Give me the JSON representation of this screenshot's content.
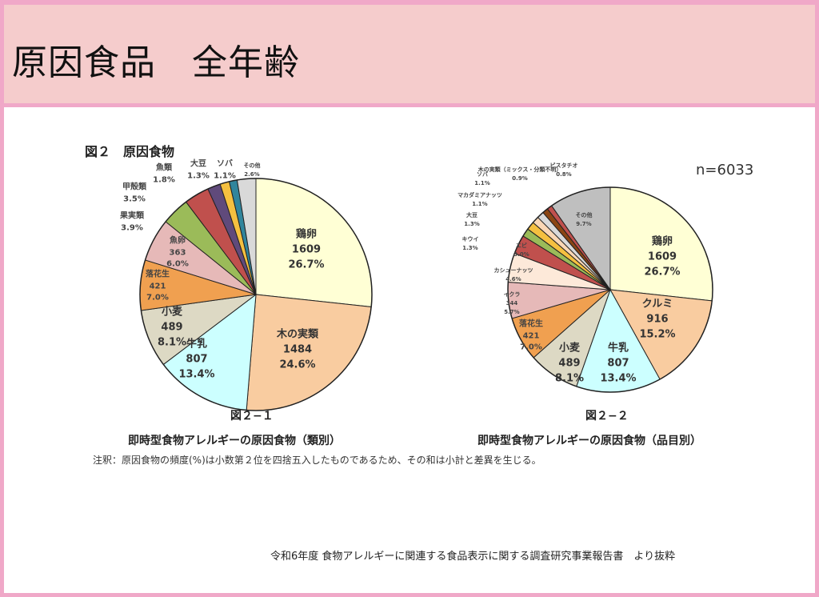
{
  "header": {
    "title": "原因食品　全年齢"
  },
  "figure_heading": "図２　原因食物",
  "n_label": "n=6033",
  "note": "注釈：原因食物の頻度(%)は小数第２位を四捨五入したものであるため、その和は小計と差異を生じる。",
  "source": "令和6年度 食物アレルギーに関連する食品表示に関する調査研究事業報告書　より抜粋",
  "chart_data": [
    {
      "type": "pie",
      "fig_label": "図２−１",
      "title": "即時型食物アレルギーの原因食物（類別）",
      "unit": "%",
      "slices": [
        {
          "name": "鶏卵",
          "count": "1609",
          "pct": "26.7%",
          "value": 26.7,
          "color": "#ffffd5"
        },
        {
          "name": "木の実類",
          "count": "1484",
          "pct": "24.6%",
          "value": 24.6,
          "color": "#f9cca0"
        },
        {
          "name": "牛乳",
          "count": "807",
          "pct": "13.4%",
          "value": 13.4,
          "color": "#ccffff"
        },
        {
          "name": "小麦",
          "count": "489",
          "pct": "8.1%",
          "value": 8.1,
          "color": "#ddd9c4"
        },
        {
          "name": "落花生",
          "count": "421",
          "pct": "7.0%",
          "value": 7.0,
          "color": "#f0a050"
        },
        {
          "name": "魚卵",
          "count": "363",
          "pct": "6.0%",
          "value": 6.0,
          "color": "#e6b9b8"
        },
        {
          "name": "果実類",
          "pct": "3.9%",
          "value": 3.9,
          "color": "#9bbb59"
        },
        {
          "name": "甲殻類",
          "pct": "3.5%",
          "value": 3.5,
          "color": "#c0504d"
        },
        {
          "name": "魚類",
          "pct": "1.8%",
          "value": 1.8,
          "color": "#604a7b"
        },
        {
          "name": "大豆",
          "pct": "1.3%",
          "value": 1.3,
          "color": "#f5c040"
        },
        {
          "name": "ソバ",
          "pct": "1.1%",
          "value": 1.1,
          "color": "#31859c"
        },
        {
          "name": "その他",
          "pct": "2.6%",
          "value": 2.6,
          "color": "#d9d9d9"
        }
      ]
    },
    {
      "type": "pie",
      "fig_label": "図２−２",
      "title": "即時型食物アレルギーの原因食物（品目別）",
      "unit": "%",
      "slices": [
        {
          "name": "鶏卵",
          "count": "1609",
          "pct": "26.7%",
          "value": 26.7,
          "color": "#ffffd5"
        },
        {
          "name": "クルミ",
          "count": "916",
          "pct": "15.2%",
          "value": 15.2,
          "color": "#f9cca0"
        },
        {
          "name": "牛乳",
          "count": "807",
          "pct": "13.4%",
          "value": 13.4,
          "color": "#ccffff"
        },
        {
          "name": "小麦",
          "count": "489",
          "pct": "8.1%",
          "value": 8.1,
          "color": "#ddd9c4"
        },
        {
          "name": "落花生",
          "count": "421",
          "pct": "7.0%",
          "value": 7.0,
          "color": "#f0a050"
        },
        {
          "name": "イクラ",
          "count": "344",
          "pct": "5.7%",
          "value": 5.7,
          "color": "#e6b9b8"
        },
        {
          "name": "カシューナッツ",
          "pct": "4.6%",
          "value": 4.6,
          "color": "#fde9d9"
        },
        {
          "name": "エビ",
          "pct": "3.0%",
          "value": 3.0,
          "color": "#c0504d"
        },
        {
          "name": "キウイ",
          "pct": "1.3%",
          "value": 1.3,
          "color": "#9bbb59"
        },
        {
          "name": "大豆",
          "pct": "1.3%",
          "value": 1.3,
          "color": "#f5c040"
        },
        {
          "name": "マカダミアナッツ",
          "pct": "1.1%",
          "value": 1.1,
          "color": "#fad7b5"
        },
        {
          "name": "ソバ",
          "pct": "1.1%",
          "value": 1.1,
          "color": "#d9d9d9"
        },
        {
          "name": "木の実類（ミックス・分類不明）",
          "pct": "0.9%",
          "value": 0.9,
          "color": "#8b4513"
        },
        {
          "name": "ピスタチオ",
          "pct": "0.8%",
          "value": 0.8,
          "color": "#c0504d"
        },
        {
          "name": "その他",
          "pct": "9.7%",
          "value": 9.7,
          "color": "#bfbfbf"
        }
      ]
    }
  ]
}
